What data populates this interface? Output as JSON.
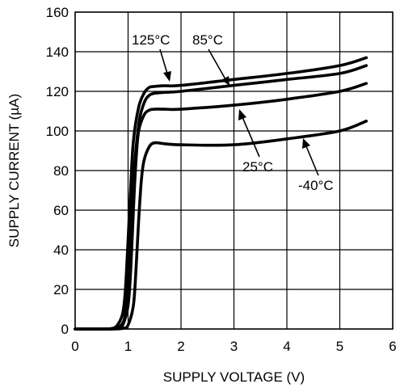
{
  "chart_data": {
    "type": "line",
    "xlabel": "SUPPLY VOLTAGE (V)",
    "ylabel": "SUPPLY CURRENT (µA)",
    "xlim": [
      0,
      6
    ],
    "ylim": [
      0,
      160
    ],
    "xticks": [
      "0",
      "1",
      "2",
      "3",
      "4",
      "5",
      "6"
    ],
    "yticks": [
      "0",
      "20",
      "40",
      "60",
      "80",
      "100",
      "120",
      "140",
      "160"
    ],
    "grid": true,
    "series": [
      {
        "name": "125°C",
        "x": [
          0,
          0.5,
          0.7,
          0.8,
          0.9,
          0.95,
          1.0,
          1.05,
          1.1,
          1.2,
          1.3,
          1.4,
          1.5,
          1.7,
          2.0,
          3.0,
          4.0,
          5.0,
          5.5
        ],
        "y": [
          0,
          0,
          0.3,
          2,
          8,
          20,
          45,
          72,
          95,
          112,
          119,
          122,
          122.5,
          122.8,
          123,
          126,
          129,
          133,
          137
        ]
      },
      {
        "name": "85°C",
        "x": [
          0,
          0.5,
          0.7,
          0.8,
          0.9,
          0.95,
          1.0,
          1.05,
          1.1,
          1.2,
          1.3,
          1.4,
          1.5,
          1.7,
          2.0,
          3.0,
          4.0,
          5.0,
          5.5
        ],
        "y": [
          0,
          0,
          0.1,
          0.5,
          3,
          8,
          22,
          48,
          75,
          103,
          114,
          118,
          119,
          119.5,
          120,
          123,
          126,
          129,
          133
        ]
      },
      {
        "name": "25°C",
        "x": [
          0,
          0.6,
          0.8,
          0.9,
          1.0,
          1.05,
          1.1,
          1.15,
          1.2,
          1.3,
          1.4,
          1.5,
          1.7,
          2.0,
          3.0,
          4.0,
          5.0,
          5.5
        ],
        "y": [
          0,
          0,
          0.3,
          2,
          12,
          30,
          60,
          85,
          100,
          108,
          110.5,
          111,
          111,
          111,
          113,
          116,
          120,
          124
        ]
      },
      {
        "name": "-40°C",
        "x": [
          0,
          0.7,
          0.9,
          1.0,
          1.1,
          1.15,
          1.2,
          1.25,
          1.3,
          1.4,
          1.5,
          1.7,
          2.0,
          3.0,
          4.0,
          5.0,
          5.5
        ],
        "y": [
          0,
          0,
          0.3,
          2,
          12,
          30,
          55,
          75,
          85,
          92,
          94,
          93.5,
          93,
          93,
          96,
          100,
          105
        ]
      }
    ],
    "annotations": [
      {
        "text": "125°C",
        "series": "125°C"
      },
      {
        "text": "85°C",
        "series": "85°C"
      },
      {
        "text": "25°C",
        "series": "25°C"
      },
      {
        "text": "-40°C",
        "series": "-40°C"
      }
    ]
  }
}
